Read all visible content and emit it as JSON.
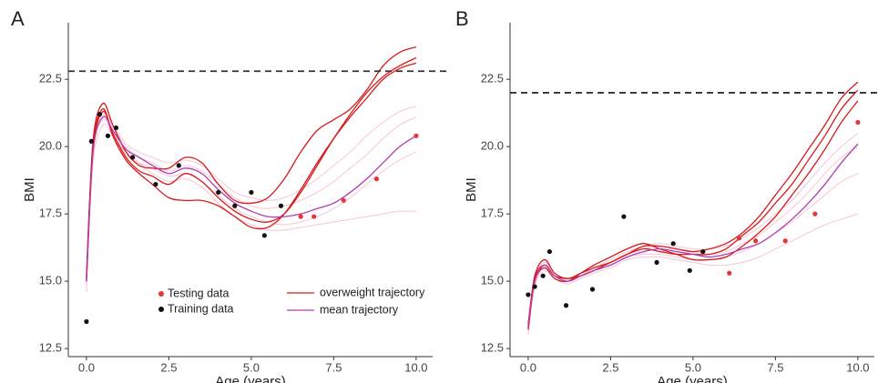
{
  "chart_data": [
    {
      "type": "line",
      "panel": "A",
      "x_label": "Age (years)",
      "y_label": "BMI",
      "xlim": [
        -0.55,
        10.5
      ],
      "ylim": [
        12.2,
        24.6
      ],
      "xticks": [
        {
          "value": 0,
          "label": "0.0"
        },
        {
          "value": 2.5,
          "label": "2.5"
        },
        {
          "value": 5,
          "label": "5.0"
        },
        {
          "value": 7.5,
          "label": "7.5"
        },
        {
          "value": 10,
          "label": "10.0"
        }
      ],
      "yticks": [
        {
          "value": 12.5,
          "label": "12.5"
        },
        {
          "value": 15,
          "label": "15.0"
        },
        {
          "value": 17.5,
          "label": "17.5"
        },
        {
          "value": 20,
          "label": "20.0"
        },
        {
          "value": 22.5,
          "label": "22.5"
        }
      ],
      "threshold": 22.8,
      "x": [
        0,
        0.2,
        0.5,
        0.8,
        1.2,
        1.6,
        2,
        2.5,
        3,
        3.5,
        4,
        4.5,
        5,
        5.5,
        6,
        6.5,
        7,
        7.5,
        8,
        8.5,
        9,
        9.5,
        10
      ],
      "series": [
        {
          "color": "#f4b8c8",
          "values": [
            14.6,
            19.4,
            20.8,
            20.4,
            19.8,
            19.4,
            19.0,
            18.7,
            18.8,
            18.5,
            17.9,
            17.4,
            17.1,
            16.9,
            16.9,
            17.0,
            17.1,
            17.2,
            17.3,
            17.4,
            17.5,
            17.6,
            17.6
          ]
        },
        {
          "color": "#f4b8c8",
          "values": [
            15.3,
            20.1,
            21.3,
            20.8,
            20.1,
            19.8,
            19.6,
            19.4,
            19.5,
            19.3,
            18.8,
            18.3,
            18.1,
            18.0,
            18.1,
            18.4,
            18.8,
            19.3,
            19.8,
            20.4,
            20.9,
            21.3,
            21.5
          ]
        },
        {
          "color": "#f4b8c8",
          "values": [
            14.9,
            19.7,
            21.0,
            20.5,
            19.7,
            19.4,
            19.2,
            18.9,
            19.0,
            18.7,
            18.2,
            17.7,
            17.4,
            17.2,
            17.1,
            17.2,
            17.4,
            17.7,
            18.1,
            18.6,
            19.1,
            19.5,
            19.8
          ]
        },
        {
          "color": "#f4b8c8",
          "values": [
            15.1,
            19.9,
            21.2,
            20.7,
            20.0,
            19.6,
            19.4,
            19.1,
            19.3,
            19.1,
            18.6,
            18.1,
            17.8,
            17.7,
            17.8,
            18.0,
            18.3,
            18.7,
            19.2,
            19.7,
            20.3,
            20.8,
            21.1
          ]
        },
        {
          "name": "overweight trajectory",
          "color": "#d7191c",
          "values": [
            15.2,
            20.2,
            21.6,
            20.8,
            19.8,
            19.3,
            19.2,
            19.2,
            19.6,
            19.4,
            18.6,
            18.0,
            17.9,
            18.1,
            18.8,
            19.8,
            20.6,
            21.0,
            21.4,
            22.1,
            23.0,
            23.5,
            23.7
          ]
        },
        {
          "color": "#d7191c",
          "values": [
            15.0,
            19.9,
            21.3,
            20.5,
            19.6,
            19.1,
            18.9,
            18.6,
            19.0,
            18.7,
            18.1,
            17.6,
            17.3,
            17.2,
            17.5,
            18.3,
            19.3,
            20.3,
            21.2,
            22.0,
            22.6,
            23.0,
            23.3
          ]
        },
        {
          "color": "#d7191c",
          "values": [
            15.1,
            20.0,
            21.4,
            20.4,
            19.5,
            19.0,
            18.6,
            18.1,
            18.0,
            18.0,
            17.8,
            17.4,
            17.0,
            17.0,
            17.5,
            18.4,
            19.4,
            20.3,
            21.1,
            21.8,
            22.5,
            22.9,
            23.1
          ]
        },
        {
          "name": "mean trajectory",
          "color": "#b03ab0",
          "values": [
            15.0,
            19.8,
            21.1,
            20.6,
            19.9,
            19.6,
            19.3,
            19.0,
            19.2,
            19.0,
            18.4,
            17.9,
            17.6,
            17.4,
            17.4,
            17.5,
            17.7,
            17.9,
            18.3,
            18.8,
            19.4,
            20.0,
            20.4
          ]
        }
      ],
      "points": [
        {
          "name": "Testing data",
          "color": "#e8333a",
          "x": [
            6.5,
            6.9,
            7.8,
            8.8,
            10.0
          ],
          "y": [
            17.4,
            17.4,
            18.0,
            18.8,
            20.4
          ]
        },
        {
          "name": "Training data",
          "color": "#111111",
          "x": [
            0,
            0.15,
            0.4,
            0.65,
            0.9,
            1.4,
            2.1,
            2.8,
            4.0,
            4.5,
            5.0,
            5.4,
            5.9
          ],
          "y": [
            13.5,
            20.2,
            21.2,
            20.4,
            20.7,
            19.6,
            18.6,
            19.3,
            18.3,
            17.8,
            18.3,
            16.7,
            17.8
          ]
        }
      ]
    },
    {
      "type": "line",
      "panel": "B",
      "x_label": "Age (years)",
      "y_label": "BMI",
      "xlim": [
        -0.55,
        10.5
      ],
      "ylim": [
        12.2,
        24.6
      ],
      "xticks": [
        {
          "value": 0,
          "label": "0.0"
        },
        {
          "value": 2.5,
          "label": "2.5"
        },
        {
          "value": 5,
          "label": "5.0"
        },
        {
          "value": 7.5,
          "label": "7.5"
        },
        {
          "value": 10,
          "label": "10.0"
        }
      ],
      "yticks": [
        {
          "value": 12.5,
          "label": "12.5"
        },
        {
          "value": 15,
          "label": "15.0"
        },
        {
          "value": 17.5,
          "label": "17.5"
        },
        {
          "value": 20,
          "label": "20.0"
        },
        {
          "value": 22.5,
          "label": "22.5"
        }
      ],
      "threshold": 22.0,
      "x": [
        0,
        0.2,
        0.5,
        0.8,
        1.2,
        1.6,
        2,
        2.5,
        3,
        3.5,
        4,
        4.5,
        5,
        5.5,
        6,
        6.5,
        7,
        7.5,
        8,
        8.5,
        9,
        9.5,
        10
      ],
      "series": [
        {
          "color": "#f4b8c8",
          "values": [
            13.0,
            14.8,
            15.4,
            15.1,
            14.9,
            15.1,
            15.3,
            15.5,
            15.8,
            15.9,
            15.9,
            15.8,
            15.7,
            15.6,
            15.6,
            15.7,
            15.9,
            16.2,
            16.5,
            16.8,
            17.1,
            17.3,
            17.5
          ]
        },
        {
          "color": "#f4b8c8",
          "values": [
            13.4,
            15.1,
            15.7,
            15.3,
            15.1,
            15.3,
            15.5,
            15.8,
            16.1,
            16.3,
            16.4,
            16.3,
            16.2,
            16.2,
            16.3,
            16.6,
            17.0,
            17.5,
            18.0,
            18.7,
            19.4,
            20.0,
            20.5
          ]
        },
        {
          "color": "#f4b8c8",
          "values": [
            13.2,
            14.9,
            15.5,
            15.1,
            15.0,
            15.2,
            15.4,
            15.6,
            15.9,
            16.0,
            16.0,
            15.9,
            15.8,
            15.8,
            15.9,
            16.1,
            16.4,
            16.8,
            17.2,
            17.7,
            18.2,
            18.7,
            19.0
          ]
        },
        {
          "color": "#f4b8c8",
          "values": [
            13.3,
            15.0,
            15.6,
            15.2,
            15.0,
            15.2,
            15.5,
            15.7,
            16.0,
            16.2,
            16.3,
            16.2,
            16.1,
            16.0,
            16.1,
            16.4,
            16.7,
            17.2,
            17.7,
            18.3,
            19.0,
            19.6,
            20.0
          ]
        },
        {
          "color": "#d7191c",
          "values": [
            13.4,
            15.2,
            15.8,
            15.3,
            15.1,
            15.3,
            15.5,
            15.7,
            16.0,
            16.3,
            16.3,
            16.2,
            16.1,
            16.2,
            16.4,
            16.8,
            17.4,
            18.2,
            19.0,
            19.9,
            20.8,
            21.8,
            22.4
          ]
        },
        {
          "color": "#d7191c",
          "values": [
            13.3,
            15.1,
            15.6,
            15.2,
            15.1,
            15.2,
            15.4,
            15.7,
            16.0,
            16.2,
            16.1,
            16.0,
            16.0,
            16.0,
            16.2,
            16.7,
            17.2,
            17.9,
            18.6,
            19.5,
            20.4,
            21.4,
            22.1
          ]
        },
        {
          "color": "#d7191c",
          "values": [
            13.2,
            15.0,
            15.5,
            15.1,
            15.0,
            15.3,
            15.6,
            15.9,
            16.2,
            16.4,
            16.2,
            16.0,
            15.8,
            15.8,
            15.9,
            16.3,
            16.8,
            17.4,
            18.2,
            19.0,
            19.9,
            20.9,
            21.7
          ]
        },
        {
          "color": "#b03ab0",
          "values": [
            13.3,
            15.0,
            15.6,
            15.2,
            15.0,
            15.2,
            15.4,
            15.6,
            15.9,
            16.1,
            16.2,
            16.1,
            16.0,
            15.9,
            16.0,
            16.2,
            16.4,
            16.8,
            17.3,
            17.9,
            18.6,
            19.4,
            20.1
          ]
        }
      ],
      "points": [
        {
          "color": "#e8333a",
          "x": [
            6.1,
            6.4,
            6.9,
            7.8,
            8.7,
            10.0
          ],
          "y": [
            15.3,
            16.6,
            16.5,
            16.5,
            17.5,
            20.9
          ]
        },
        {
          "color": "#111111",
          "x": [
            0,
            0.2,
            0.45,
            0.65,
            1.15,
            1.95,
            2.9,
            3.9,
            4.4,
            4.9,
            5.3
          ],
          "y": [
            14.5,
            14.8,
            15.2,
            16.1,
            14.1,
            14.7,
            17.4,
            15.7,
            16.4,
            15.4,
            16.1
          ]
        }
      ]
    }
  ]
}
